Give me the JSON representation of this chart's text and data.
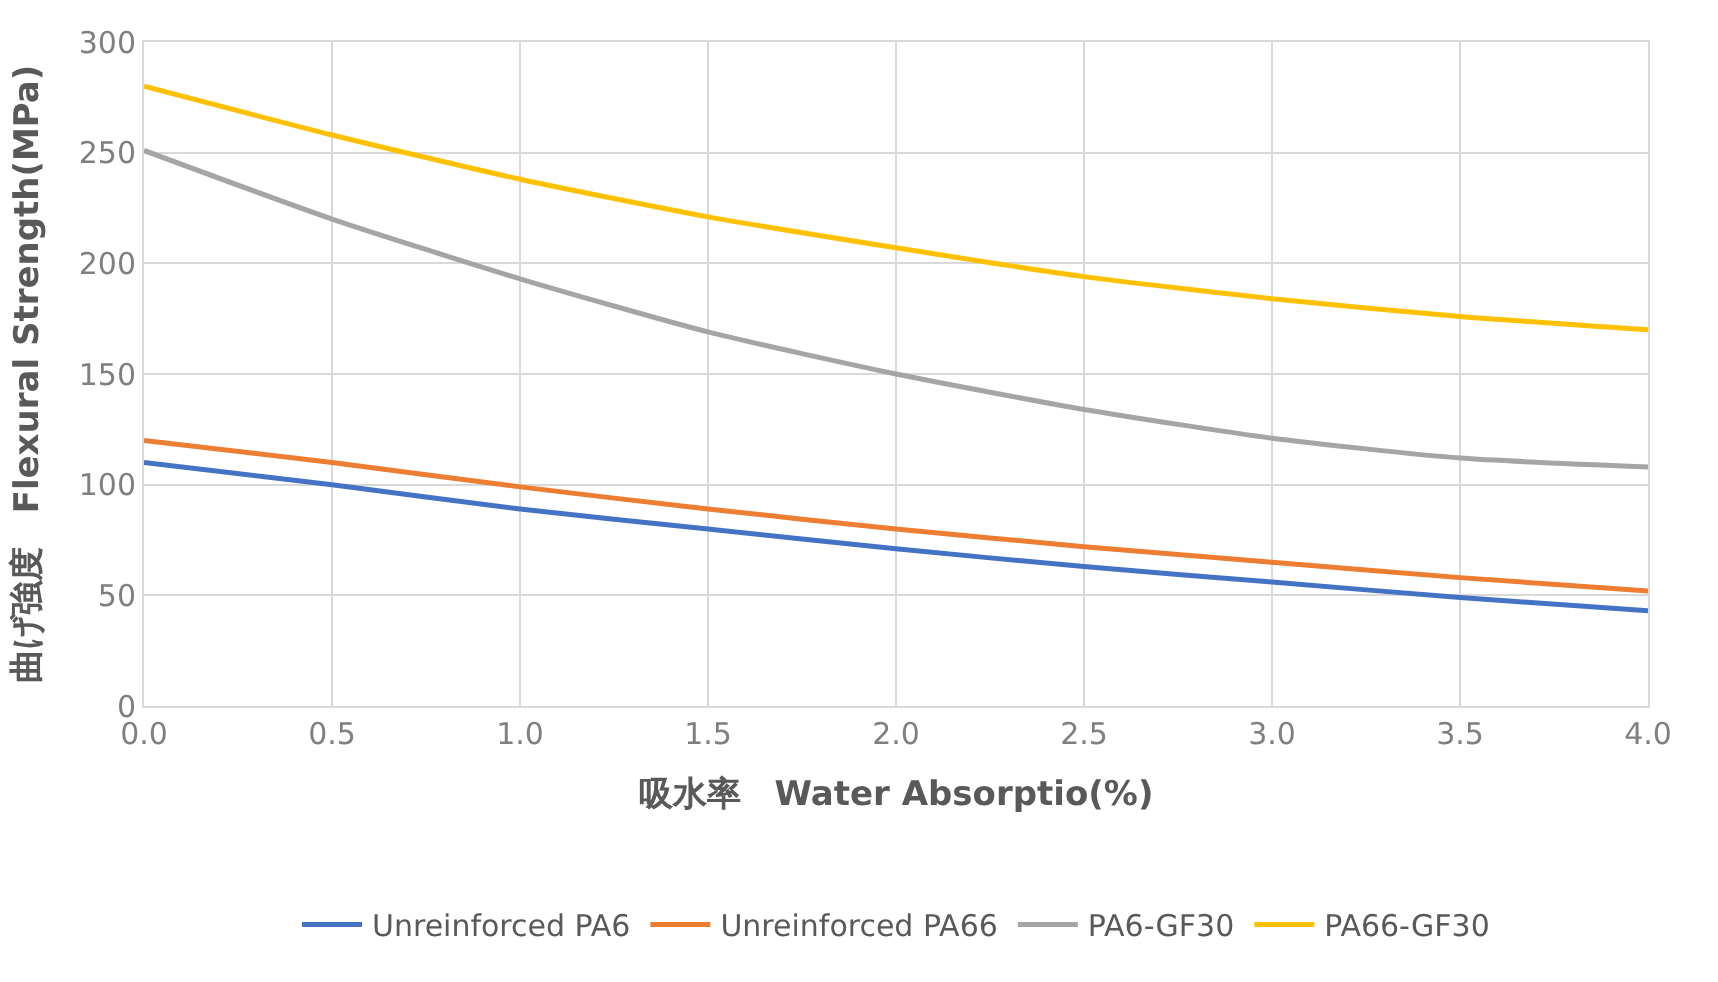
{
  "chart_data": {
    "type": "line",
    "xlabel": "吸水率　Water Absorptio(%)",
    "ylabel": "曲げ強度　Flexural Strength(MPa)",
    "x": [
      0,
      0.5,
      1.0,
      1.5,
      2.0,
      2.5,
      3.0,
      3.5,
      4.0
    ],
    "series": [
      {
        "name": "Unreinforced PA6",
        "color": "#4472c4",
        "values": [
          110,
          100,
          89,
          80,
          71,
          63,
          56,
          49,
          43
        ]
      },
      {
        "name": "Unreinforced PA66",
        "color": "#ed7d31",
        "values": [
          120,
          110,
          99,
          89,
          80,
          72,
          65,
          58,
          52
        ]
      },
      {
        "name": "PA6-GF30",
        "color": "#a5a5a5",
        "values": [
          251,
          220,
          193,
          169,
          150,
          134,
          121,
          112,
          108
        ]
      },
      {
        "name": "PA66-GF30",
        "color": "#ffc000",
        "values": [
          280,
          258,
          238,
          221,
          207,
          194,
          184,
          176,
          170
        ]
      }
    ],
    "xlim": [
      0,
      4.0
    ],
    "xticks": [
      {
        "value": 0,
        "label": "0.0"
      },
      {
        "value": 0.5,
        "label": "0.5"
      },
      {
        "value": 1.0,
        "label": "1.0"
      },
      {
        "value": 1.5,
        "label": "1.5"
      },
      {
        "value": 2.0,
        "label": "2.0"
      },
      {
        "value": 2.5,
        "label": "2.5"
      },
      {
        "value": 3.0,
        "label": "3.0"
      },
      {
        "value": 3.5,
        "label": "3.5"
      },
      {
        "value": 4.0,
        "label": "4.0"
      }
    ],
    "ylim": [
      0,
      300
    ],
    "yticks": [
      0,
      50,
      100,
      150,
      200,
      250,
      300
    ],
    "grid": true,
    "legend": "bottom",
    "marker": "none",
    "line_style": "solid"
  }
}
